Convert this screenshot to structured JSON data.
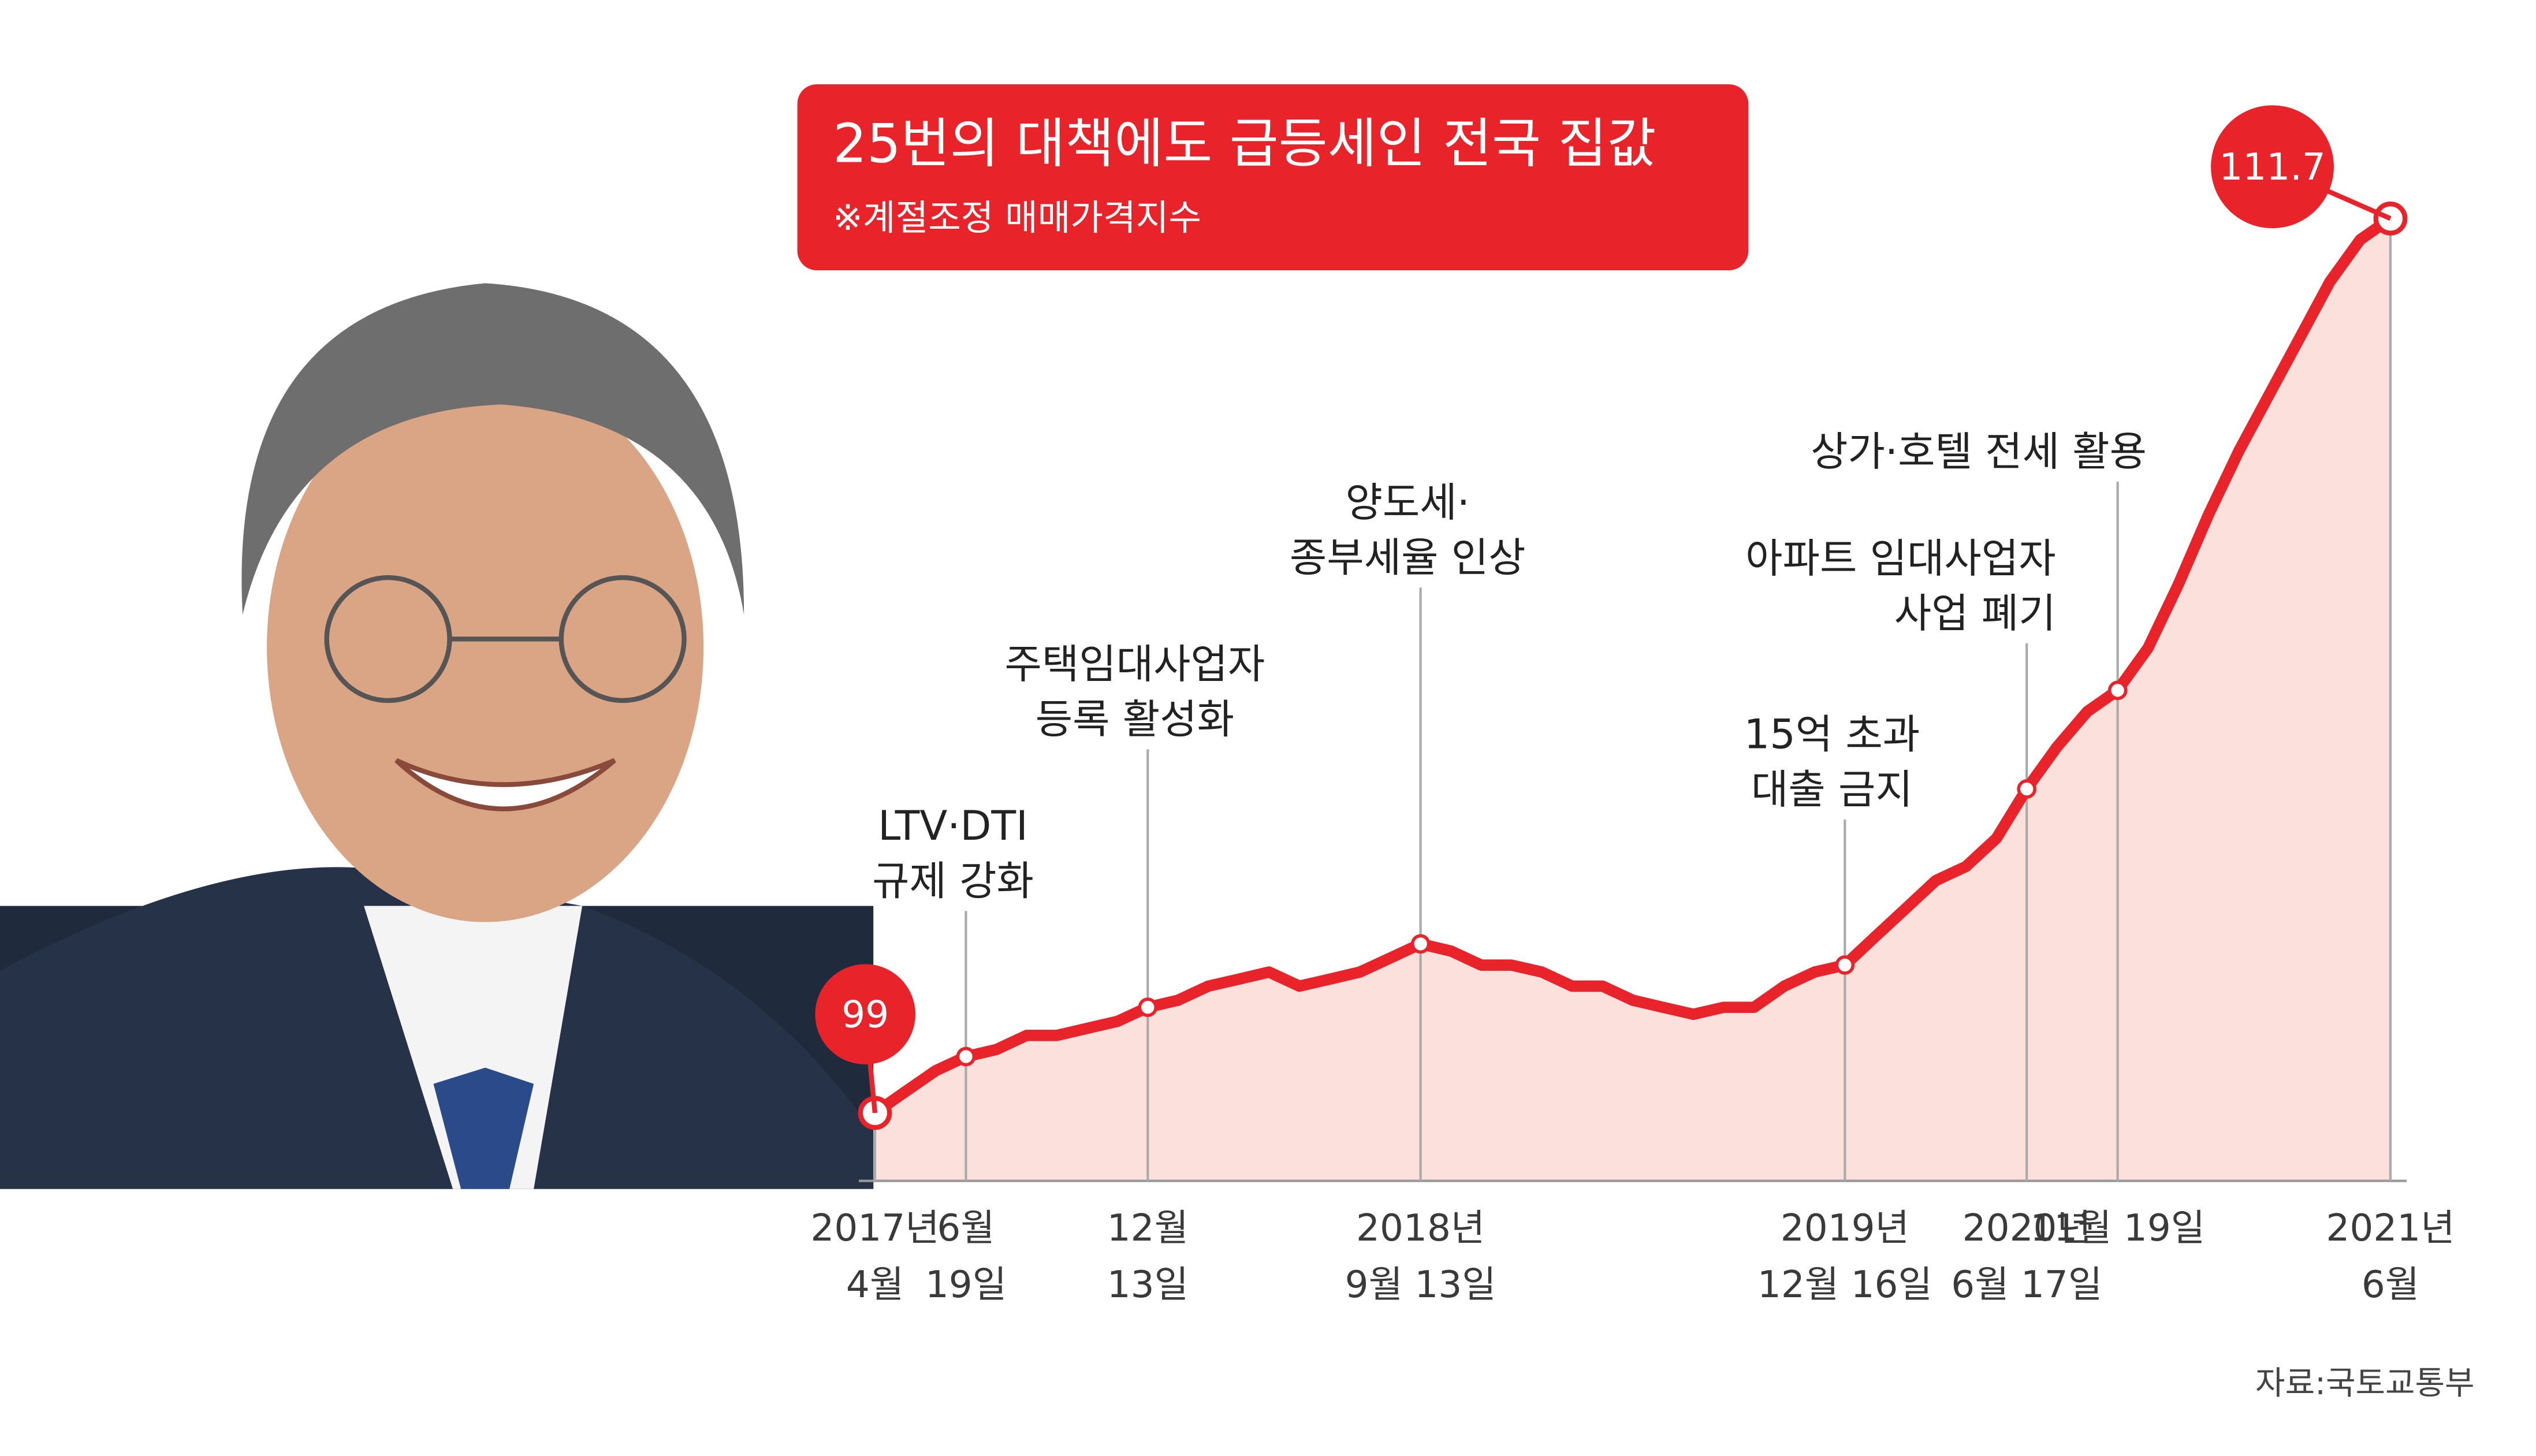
{
  "chart_data": {
    "type": "line",
    "title": "25번의 대책에도 급등세인 전국 집값",
    "subtitle": "※계절조정 매매가격지수",
    "source": "자료:국토교통부",
    "categories": [
      "2017년\n4월",
      null,
      null,
      "6월\n19일",
      null,
      null,
      null,
      null,
      null,
      "12월\n13일",
      null,
      null,
      null,
      null,
      null,
      null,
      null,
      null,
      "2018년\n9월 13일",
      null,
      null,
      null,
      null,
      null,
      null,
      null,
      null,
      null,
      null,
      null,
      null,
      null,
      "2019년\n12월 16일",
      null,
      null,
      null,
      null,
      null,
      "2020년\n6월 17일",
      null,
      null,
      "11월 19일",
      null,
      null,
      null,
      null,
      null,
      null,
      null,
      null,
      "2021년\n6월"
    ],
    "annotations": [
      null,
      null,
      null,
      "LTV·DTI\n규제 강화",
      null,
      null,
      null,
      null,
      null,
      "주택임대사업자\n등록 활성화",
      null,
      null,
      null,
      null,
      null,
      null,
      null,
      null,
      "양도세·\n종부세율 인상",
      null,
      null,
      null,
      null,
      null,
      null,
      null,
      null,
      null,
      null,
      null,
      null,
      null,
      "15억 초과\n대출 금지",
      null,
      null,
      null,
      null,
      null,
      "아파트 임대사업자\n사업 폐기",
      null,
      null,
      "상가·호텔 전세 활용",
      null,
      null,
      null,
      null,
      null,
      null,
      null,
      null,
      null
    ],
    "values": [
      99,
      99.3,
      99.6,
      99.8,
      99.9,
      100.1,
      100.1,
      100.2,
      100.3,
      100.5,
      100.6,
      100.8,
      100.9,
      101,
      100.8,
      100.9,
      101,
      101.2,
      101.4,
      101.3,
      101.1,
      101.1,
      101,
      100.8,
      100.8,
      100.6,
      100.5,
      100.4,
      100.5,
      100.5,
      100.8,
      101,
      101.1,
      101.5,
      101.9,
      102.3,
      102.5,
      102.9,
      103.6,
      104.2,
      104.7,
      105,
      105.6,
      106.5,
      107.5,
      108.4,
      109.2,
      110,
      110.8,
      111.4,
      111.7
    ],
    "value_label_points": "ends",
    "color": "#e8232a",
    "area_color": "#fbe0dc",
    "grid": false
  }
}
